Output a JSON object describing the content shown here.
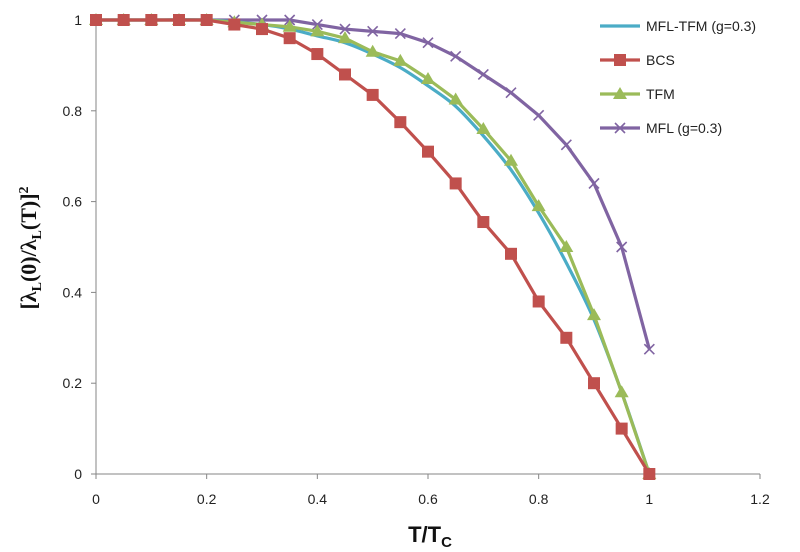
{
  "chart_data": {
    "type": "line",
    "xlabel": "T/T",
    "xlabel_sub": "C",
    "ylabel_parts": [
      "[λ",
      "L",
      "(0)/λ",
      "L",
      "(T)]",
      "2"
    ],
    "xlim": [
      0,
      1.2
    ],
    "ylim": [
      0,
      1.0
    ],
    "xticks": [
      0,
      0.2,
      0.4,
      0.6,
      0.8,
      1,
      1.2
    ],
    "xtick_labels": [
      "0",
      "0.2",
      "0.4",
      "0.6",
      "0.8",
      "1",
      "1.2"
    ],
    "yticks": [
      0,
      0.2,
      0.4,
      0.6,
      0.8,
      1
    ],
    "ytick_labels": [
      "0",
      "0.2",
      "0.4",
      "0.6",
      "0.8",
      "1"
    ],
    "legend_position": "top-right",
    "series": [
      {
        "name": "MFL-TFM (g=0.3)",
        "color": "#4bacc6",
        "marker": "none",
        "smooth": true,
        "x": [
          0,
          0.1,
          0.2,
          0.3,
          0.35,
          0.4,
          0.45,
          0.5,
          0.55,
          0.6,
          0.65,
          0.7,
          0.75,
          0.8,
          0.85,
          0.9,
          0.95,
          1.0
        ],
        "y": [
          1,
          1,
          1,
          0.99,
          0.98,
          0.965,
          0.95,
          0.925,
          0.895,
          0.855,
          0.81,
          0.745,
          0.67,
          0.575,
          0.465,
          0.34,
          0.18,
          0
        ]
      },
      {
        "name": "BCS",
        "color": "#c0504d",
        "marker": "square",
        "smooth": false,
        "x": [
          0,
          0.05,
          0.1,
          0.15,
          0.2,
          0.25,
          0.3,
          0.35,
          0.4,
          0.45,
          0.5,
          0.55,
          0.6,
          0.65,
          0.7,
          0.75,
          0.8,
          0.85,
          0.9,
          0.95,
          1.0
        ],
        "y": [
          1,
          1,
          1,
          1,
          1,
          0.99,
          0.98,
          0.96,
          0.925,
          0.88,
          0.835,
          0.775,
          0.71,
          0.64,
          0.555,
          0.485,
          0.38,
          0.3,
          0.2,
          0.1,
          0
        ]
      },
      {
        "name": "TFM",
        "color": "#9bbb59",
        "marker": "triangle",
        "smooth": false,
        "x": [
          0,
          0.05,
          0.1,
          0.15,
          0.2,
          0.25,
          0.3,
          0.35,
          0.4,
          0.45,
          0.5,
          0.55,
          0.6,
          0.65,
          0.7,
          0.75,
          0.8,
          0.85,
          0.9,
          0.95,
          1.0
        ],
        "y": [
          1,
          1,
          1,
          1,
          1,
          0.995,
          0.99,
          0.985,
          0.975,
          0.96,
          0.93,
          0.91,
          0.87,
          0.825,
          0.76,
          0.69,
          0.59,
          0.5,
          0.35,
          0.18,
          0
        ]
      },
      {
        "name": "MFL (g=0.3)",
        "color": "#8064a2",
        "marker": "x",
        "smooth": false,
        "x": [
          0,
          0.05,
          0.1,
          0.15,
          0.2,
          0.25,
          0.3,
          0.35,
          0.4,
          0.45,
          0.5,
          0.55,
          0.6,
          0.65,
          0.7,
          0.75,
          0.8,
          0.85,
          0.9,
          0.95,
          1.0
        ],
        "y": [
          1,
          1,
          1,
          1,
          1,
          1,
          1,
          1,
          0.99,
          0.98,
          0.975,
          0.97,
          0.95,
          0.92,
          0.88,
          0.84,
          0.79,
          0.725,
          0.64,
          0.5,
          0.275
        ]
      }
    ]
  }
}
